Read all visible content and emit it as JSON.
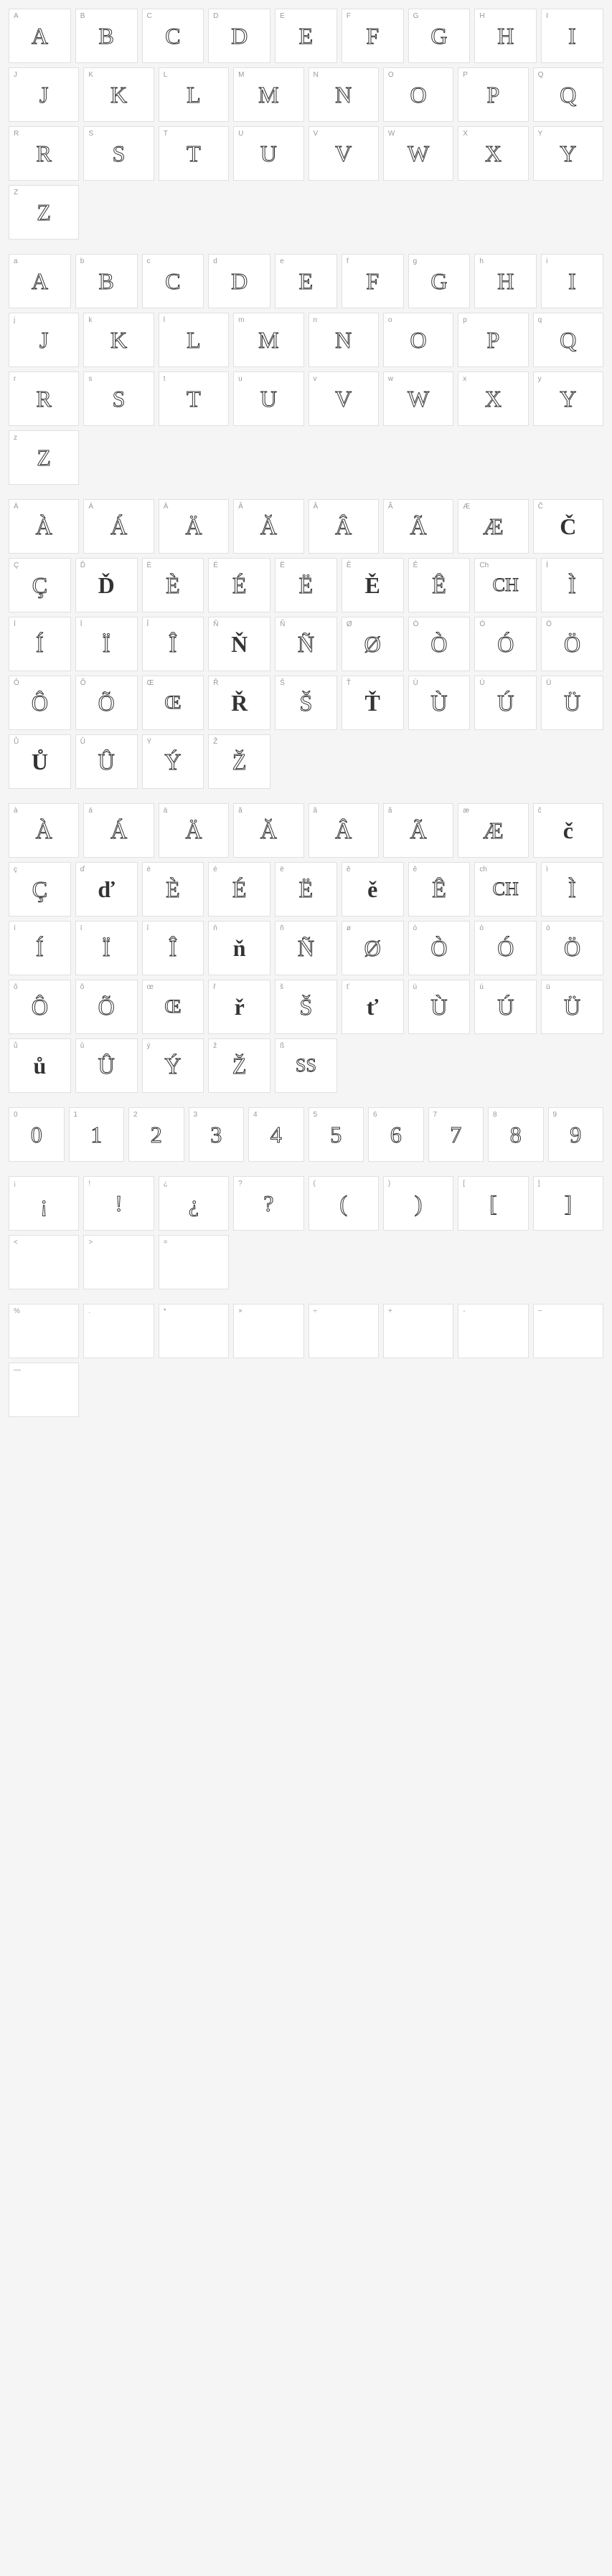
{
  "uppercase": [
    {
      "k": "A",
      "g": "A"
    },
    {
      "k": "B",
      "g": "B"
    },
    {
      "k": "C",
      "g": "C"
    },
    {
      "k": "D",
      "g": "D"
    },
    {
      "k": "E",
      "g": "E"
    },
    {
      "k": "F",
      "g": "F"
    },
    {
      "k": "G",
      "g": "G"
    },
    {
      "k": "H",
      "g": "H"
    },
    {
      "k": "I",
      "g": "I"
    },
    {
      "k": "J",
      "g": "J"
    },
    {
      "k": "K",
      "g": "K"
    },
    {
      "k": "L",
      "g": "L"
    },
    {
      "k": "M",
      "g": "M"
    },
    {
      "k": "N",
      "g": "N"
    },
    {
      "k": "O",
      "g": "O"
    },
    {
      "k": "P",
      "g": "P"
    },
    {
      "k": "Q",
      "g": "Q"
    },
    {
      "k": "R",
      "g": "R"
    },
    {
      "k": "S",
      "g": "S"
    },
    {
      "k": "T",
      "g": "T"
    },
    {
      "k": "U",
      "g": "U"
    },
    {
      "k": "V",
      "g": "V"
    },
    {
      "k": "W",
      "g": "W"
    },
    {
      "k": "X",
      "g": "X"
    },
    {
      "k": "Y",
      "g": "Y"
    },
    {
      "k": "Z",
      "g": "Z"
    }
  ],
  "lowercase": [
    {
      "k": "a",
      "g": "A"
    },
    {
      "k": "b",
      "g": "B"
    },
    {
      "k": "c",
      "g": "C"
    },
    {
      "k": "d",
      "g": "D"
    },
    {
      "k": "e",
      "g": "E"
    },
    {
      "k": "f",
      "g": "F"
    },
    {
      "k": "g",
      "g": "G"
    },
    {
      "k": "h",
      "g": "H"
    },
    {
      "k": "i",
      "g": "I"
    },
    {
      "k": "j",
      "g": "J"
    },
    {
      "k": "k",
      "g": "K"
    },
    {
      "k": "l",
      "g": "L"
    },
    {
      "k": "m",
      "g": "M"
    },
    {
      "k": "n",
      "g": "N"
    },
    {
      "k": "o",
      "g": "O"
    },
    {
      "k": "p",
      "g": "P"
    },
    {
      "k": "q",
      "g": "Q"
    },
    {
      "k": "r",
      "g": "R"
    },
    {
      "k": "s",
      "g": "S"
    },
    {
      "k": "t",
      "g": "T"
    },
    {
      "k": "u",
      "g": "U"
    },
    {
      "k": "v",
      "g": "V"
    },
    {
      "k": "w",
      "g": "W"
    },
    {
      "k": "x",
      "g": "X"
    },
    {
      "k": "y",
      "g": "Y"
    },
    {
      "k": "z",
      "g": "Z"
    }
  ],
  "accented_upper": [
    {
      "k": "À",
      "g": "À"
    },
    {
      "k": "Á",
      "g": "Á"
    },
    {
      "k": "Ä",
      "g": "Ä"
    },
    {
      "k": "Ă",
      "g": "Ă"
    },
    {
      "k": "Â",
      "g": "Â"
    },
    {
      "k": "Ã",
      "g": "Ã"
    },
    {
      "k": "Æ",
      "g": "Æ"
    },
    {
      "k": "Č",
      "g": "Č",
      "bold": true
    },
    {
      "k": "Ç",
      "g": "Ç"
    },
    {
      "k": "Ď",
      "g": "Ď",
      "bold": true
    },
    {
      "k": "È",
      "g": "È"
    },
    {
      "k": "É",
      "g": "É"
    },
    {
      "k": "Ë",
      "g": "Ë"
    },
    {
      "k": "Ě",
      "g": "Ě",
      "bold": true
    },
    {
      "k": "Ê",
      "g": "Ê"
    },
    {
      "k": "Ch",
      "g": "CH",
      "sm": true
    },
    {
      "k": "Ì",
      "g": "Ì"
    },
    {
      "k": "Í",
      "g": "Í"
    },
    {
      "k": "Ï",
      "g": "Ï"
    },
    {
      "k": "Î",
      "g": "Î"
    },
    {
      "k": "Ň",
      "g": "Ň",
      "bold": true
    },
    {
      "k": "Ñ",
      "g": "Ñ"
    },
    {
      "k": "Ø",
      "g": "Ø"
    },
    {
      "k": "Ò",
      "g": "Ò"
    },
    {
      "k": "Ó",
      "g": "Ó"
    },
    {
      "k": "Ö",
      "g": "Ö"
    },
    {
      "k": "Ô",
      "g": "Ô"
    },
    {
      "k": "Õ",
      "g": "Õ"
    },
    {
      "k": "Œ",
      "g": "Œ",
      "sm": true
    },
    {
      "k": "Ř",
      "g": "Ř",
      "bold": true
    },
    {
      "k": "Š",
      "g": "Š"
    },
    {
      "k": "Ť",
      "g": "Ť",
      "bold": true
    },
    {
      "k": "Ù",
      "g": "Ù"
    },
    {
      "k": "Ú",
      "g": "Ú"
    },
    {
      "k": "Ü",
      "g": "Ü"
    },
    {
      "k": "Ů",
      "g": "Ů",
      "bold": true
    },
    {
      "k": "Û",
      "g": "Û"
    },
    {
      "k": "Ý",
      "g": "Ý"
    },
    {
      "k": "Ž",
      "g": "Ž"
    }
  ],
  "accented_lower": [
    {
      "k": "à",
      "g": "À"
    },
    {
      "k": "á",
      "g": "Á"
    },
    {
      "k": "ä",
      "g": "Ä"
    },
    {
      "k": "ă",
      "g": "Ă"
    },
    {
      "k": "â",
      "g": "Â"
    },
    {
      "k": "ã",
      "g": "Ã"
    },
    {
      "k": "æ",
      "g": "Æ"
    },
    {
      "k": "č",
      "g": "č",
      "bold": true
    },
    {
      "k": "ç",
      "g": "Ç"
    },
    {
      "k": "ď",
      "g": "ď",
      "bold": true
    },
    {
      "k": "è",
      "g": "È"
    },
    {
      "k": "é",
      "g": "É"
    },
    {
      "k": "ë",
      "g": "Ë"
    },
    {
      "k": "ě",
      "g": "ě",
      "bold": true
    },
    {
      "k": "ê",
      "g": "Ê"
    },
    {
      "k": "ch",
      "g": "CH",
      "sm": true
    },
    {
      "k": "ì",
      "g": "Ì"
    },
    {
      "k": "í",
      "g": "Í"
    },
    {
      "k": "ï",
      "g": "Ï"
    },
    {
      "k": "î",
      "g": "Î"
    },
    {
      "k": "ň",
      "g": "ň",
      "bold": true
    },
    {
      "k": "ñ",
      "g": "Ñ"
    },
    {
      "k": "ø",
      "g": "Ø"
    },
    {
      "k": "ò",
      "g": "Ò"
    },
    {
      "k": "ó",
      "g": "Ó"
    },
    {
      "k": "ö",
      "g": "Ö"
    },
    {
      "k": "ô",
      "g": "Ô"
    },
    {
      "k": "õ",
      "g": "Õ"
    },
    {
      "k": "œ",
      "g": "Œ",
      "sm": true
    },
    {
      "k": "ř",
      "g": "ř",
      "bold": true
    },
    {
      "k": "š",
      "g": "Š"
    },
    {
      "k": "ť",
      "g": "ť",
      "bold": true
    },
    {
      "k": "ù",
      "g": "Ù"
    },
    {
      "k": "ú",
      "g": "Ú"
    },
    {
      "k": "ü",
      "g": "Ü"
    },
    {
      "k": "ů",
      "g": "ů",
      "bold": true
    },
    {
      "k": "û",
      "g": "Û"
    },
    {
      "k": "ý",
      "g": "Ý"
    },
    {
      "k": "ž",
      "g": "Ž"
    },
    {
      "k": "ß",
      "g": "SS",
      "sm": true
    }
  ],
  "numbers": [
    {
      "k": "0",
      "g": "0"
    },
    {
      "k": "1",
      "g": "1"
    },
    {
      "k": "2",
      "g": "2"
    },
    {
      "k": "3",
      "g": "3"
    },
    {
      "k": "4",
      "g": "4"
    },
    {
      "k": "5",
      "g": "5"
    },
    {
      "k": "6",
      "g": "6"
    },
    {
      "k": "7",
      "g": "7"
    },
    {
      "k": "8",
      "g": "8"
    },
    {
      "k": "9",
      "g": "9"
    }
  ],
  "punct": [
    {
      "k": "¡",
      "g": "¡"
    },
    {
      "k": "!",
      "g": "!"
    },
    {
      "k": "¿",
      "g": "¿"
    },
    {
      "k": "?",
      "g": "?"
    },
    {
      "k": "(",
      "g": "("
    },
    {
      "k": ")",
      "g": ")"
    },
    {
      "k": "[",
      "g": "["
    },
    {
      "k": "]",
      "g": "]"
    },
    {
      "k": "<",
      "g": ""
    },
    {
      "k": ">",
      "g": ""
    },
    {
      "k": "=",
      "g": ""
    }
  ],
  "punct2": [
    {
      "k": "%",
      "g": ""
    },
    {
      "k": ".",
      "g": ""
    },
    {
      "k": "*",
      "g": ""
    },
    {
      "k": "×",
      "g": ""
    },
    {
      "k": "÷",
      "g": ""
    },
    {
      "k": "+",
      "g": ""
    },
    {
      "k": "-",
      "g": ""
    },
    {
      "k": "−",
      "g": ""
    },
    {
      "k": "—",
      "g": ""
    }
  ],
  "colors": {
    "cell_bg": "#ffffff",
    "cell_border": "#e0e0e0",
    "key": "#999999",
    "glyph": "#333333",
    "page_bg": "#f5f5f5"
  }
}
